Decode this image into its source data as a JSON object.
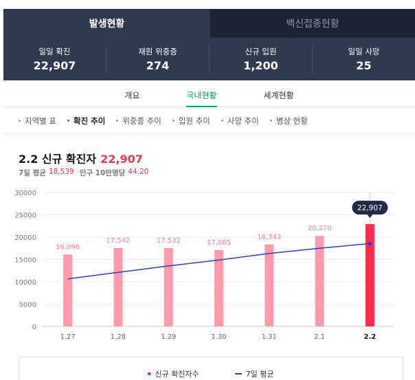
{
  "top_tabs": [
    {
      "label": "발생현황",
      "active": true
    },
    {
      "label": "백신접종현황",
      "active": false
    }
  ],
  "stats": [
    {
      "label": "일일 확진",
      "value": "22,907"
    },
    {
      "label": "재원 위중증",
      "value": "274"
    },
    {
      "label": "신규 입원",
      "value": "1,200"
    },
    {
      "label": "일일 사망",
      "value": "25"
    }
  ],
  "sub_tabs": [
    {
      "label": "개요",
      "active": false
    },
    {
      "label": "국내현황",
      "active": true
    },
    {
      "label": "세계현황",
      "active": false
    }
  ],
  "filters": [
    {
      "label": "지역별 표",
      "active": false
    },
    {
      "label": "확진 추이",
      "active": true
    },
    {
      "label": "위중증 추이",
      "active": false
    },
    {
      "label": "입원 추이",
      "active": false
    },
    {
      "label": "사망 추이",
      "active": false
    },
    {
      "label": "병상 현황",
      "active": false
    }
  ],
  "section": {
    "title": "2.2 신규 확진자",
    "value": "22,907",
    "avg_label": "7일 평균",
    "avg_value": "18,539",
    "per_label": "인구 10만명당",
    "per_value": "44.20"
  },
  "colors": {
    "bar": "#ff9aab",
    "bar_highlight": "#ff2e4c",
    "avg_line": "#2a3fbf",
    "accent_green": "#13a05a",
    "header_bg": "#2f3a4f"
  },
  "chart_data": {
    "type": "bar",
    "categories": [
      "1.27",
      "1.28",
      "1.29",
      "1.30",
      "1.31",
      "2.1",
      "2.2"
    ],
    "series": [
      {
        "name": "신규 확진자수",
        "values": [
          16096,
          17542,
          17532,
          17085,
          18343,
          20270,
          22907
        ],
        "labels": [
          "16,096",
          "17,542",
          "17,532",
          "17,085",
          "18,343",
          "20,270",
          "22,907"
        ]
      },
      {
        "name": "7일 평균",
        "type": "line",
        "values": [
          10640,
          12100,
          13540,
          14870,
          16330,
          17500,
          18539
        ]
      }
    ],
    "highlight_index": 6,
    "highlight_label": "22,907",
    "ylim": [
      0,
      30000
    ],
    "yticks": [
      0,
      5000,
      10000,
      15000,
      20000,
      25000,
      30000
    ],
    "grid": true,
    "legend_position": "bottom"
  }
}
